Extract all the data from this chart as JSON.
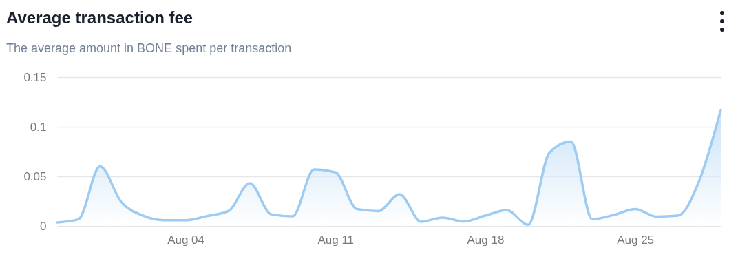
{
  "chart_data": {
    "type": "area",
    "title": "Average transaction fee",
    "subtitle": "The average amount in BONE spent per transaction",
    "x": [
      "--07-29",
      "--07-30",
      "--07-31",
      "--08-01",
      "--08-02",
      "--08-03",
      "--08-04",
      "--08-05",
      "--08-06",
      "--08-07",
      "--08-08",
      "--08-09",
      "--08-10",
      "--08-11",
      "--08-12",
      "--08-13",
      "--08-14",
      "--08-15",
      "--08-16",
      "--08-17",
      "--08-18",
      "--08-19",
      "--08-20",
      "--08-21",
      "--08-22",
      "--08-23",
      "--08-24",
      "--08-25",
      "--08-26",
      "--08-27",
      "--08-28",
      "--08-29"
    ],
    "series": [
      {
        "color": "#9ecbf1",
        "values": [
          0.0035,
          0.0067,
          0.06,
          0.024,
          0.0105,
          0.0057,
          0.0057,
          0.01,
          0.015,
          0.043,
          0.0117,
          0.0097,
          0.057,
          0.054,
          0.017,
          0.015,
          0.032,
          0.0042,
          0.0084,
          0.0045,
          0.0104,
          0.016,
          0.0012,
          0.074,
          0.085,
          0.0067,
          0.011,
          0.017,
          0.0094,
          0.0104,
          0.046,
          0.117
        ]
      }
    ],
    "xlim": [
      "--07-29",
      "--08-29"
    ],
    "xticks": [
      {
        "value": "--08-04",
        "label": "Aug 04"
      },
      {
        "value": "--08-11",
        "label": "Aug 11"
      },
      {
        "value": "--08-18",
        "label": "Aug 18"
      },
      {
        "value": "--08-25",
        "label": "Aug 25"
      }
    ],
    "ylim": [
      0,
      0.15
    ],
    "yticks": [
      0,
      0.05,
      0.1,
      0.15
    ],
    "grid": "y",
    "marker": "none",
    "line_style": "solid"
  }
}
